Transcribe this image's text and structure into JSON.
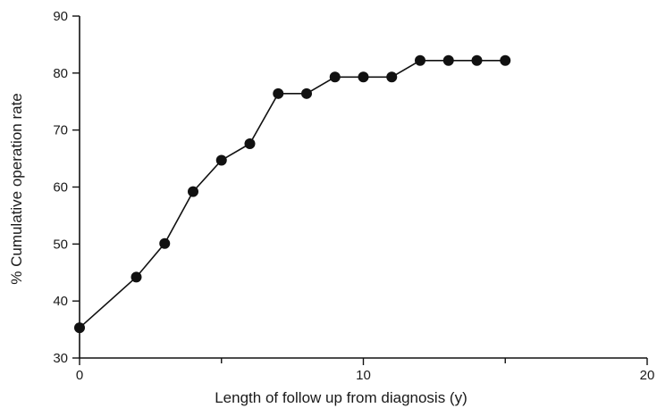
{
  "chart_data": {
    "type": "line",
    "title": "",
    "xlabel": "Length of follow up from diagnosis (y)",
    "ylabel": "% Cumulative operation rate",
    "xlim": [
      0,
      20
    ],
    "ylim": [
      30,
      90
    ],
    "x_ticks": [
      0,
      10,
      20
    ],
    "x_minor_ticks": [
      5,
      15
    ],
    "y_ticks": [
      30,
      40,
      50,
      60,
      70,
      80,
      90
    ],
    "grid": false,
    "series": [
      {
        "x": [
          0,
          2,
          3,
          4,
          5,
          6,
          7,
          8,
          9,
          10,
          11,
          12,
          13,
          14,
          15
        ],
        "y": [
          35.3,
          44.2,
          50.1,
          59.2,
          64.7,
          67.6,
          76.4,
          76.4,
          79.3,
          79.3,
          79.3,
          82.2,
          82.2,
          82.2,
          82.2
        ]
      }
    ]
  }
}
